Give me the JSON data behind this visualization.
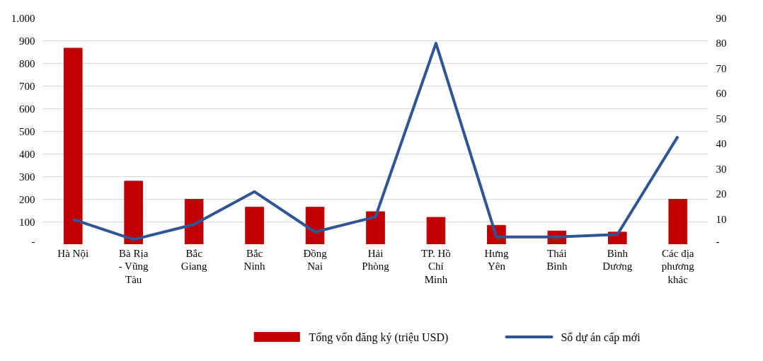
{
  "chart_data": {
    "type": "bar",
    "categories": [
      "Hà Nội",
      "Bà Rịa\n- Vũng\nTàu",
      "Bắc\nGiang",
      "Bắc\nNinh",
      "Đồng\nNai",
      "Hải\nPhòng",
      "TP. Hồ\nChí\nMinh",
      "Hưng\nYên",
      "Thái\nBình",
      "Bình\nDương",
      "Các địa\nphương\nkhác"
    ],
    "series": [
      {
        "name": "Tổng vốn đăng ký (triệu  USD)",
        "color": "#c00000",
        "values": [
          867,
          280,
          200,
          165,
          165,
          145,
          120,
          85,
          60,
          55,
          200
        ]
      },
      {
        "name": "Số dự án  cấp mới",
        "type": "line",
        "axis": "y2",
        "color": "#2f5597",
        "values": [
          10,
          2,
          8,
          21,
          5,
          11,
          80,
          3,
          3,
          4,
          43
        ]
      }
    ],
    "ylim": [
      0,
      1000
    ],
    "yticks": [
      {
        "value": 0,
        "label": "-"
      },
      100,
      200,
      300,
      400,
      500,
      600,
      700,
      800,
      900,
      {
        "value": 1000,
        "label": "1.000"
      }
    ],
    "y2lim": [
      0,
      90
    ],
    "y2ticks": [
      {
        "value": 0,
        "label": "-"
      },
      10,
      20,
      30,
      40,
      50,
      60,
      70,
      80,
      90
    ],
    "grid": "y",
    "legend": "bottom",
    "marker": "none",
    "line_style": "solid"
  }
}
